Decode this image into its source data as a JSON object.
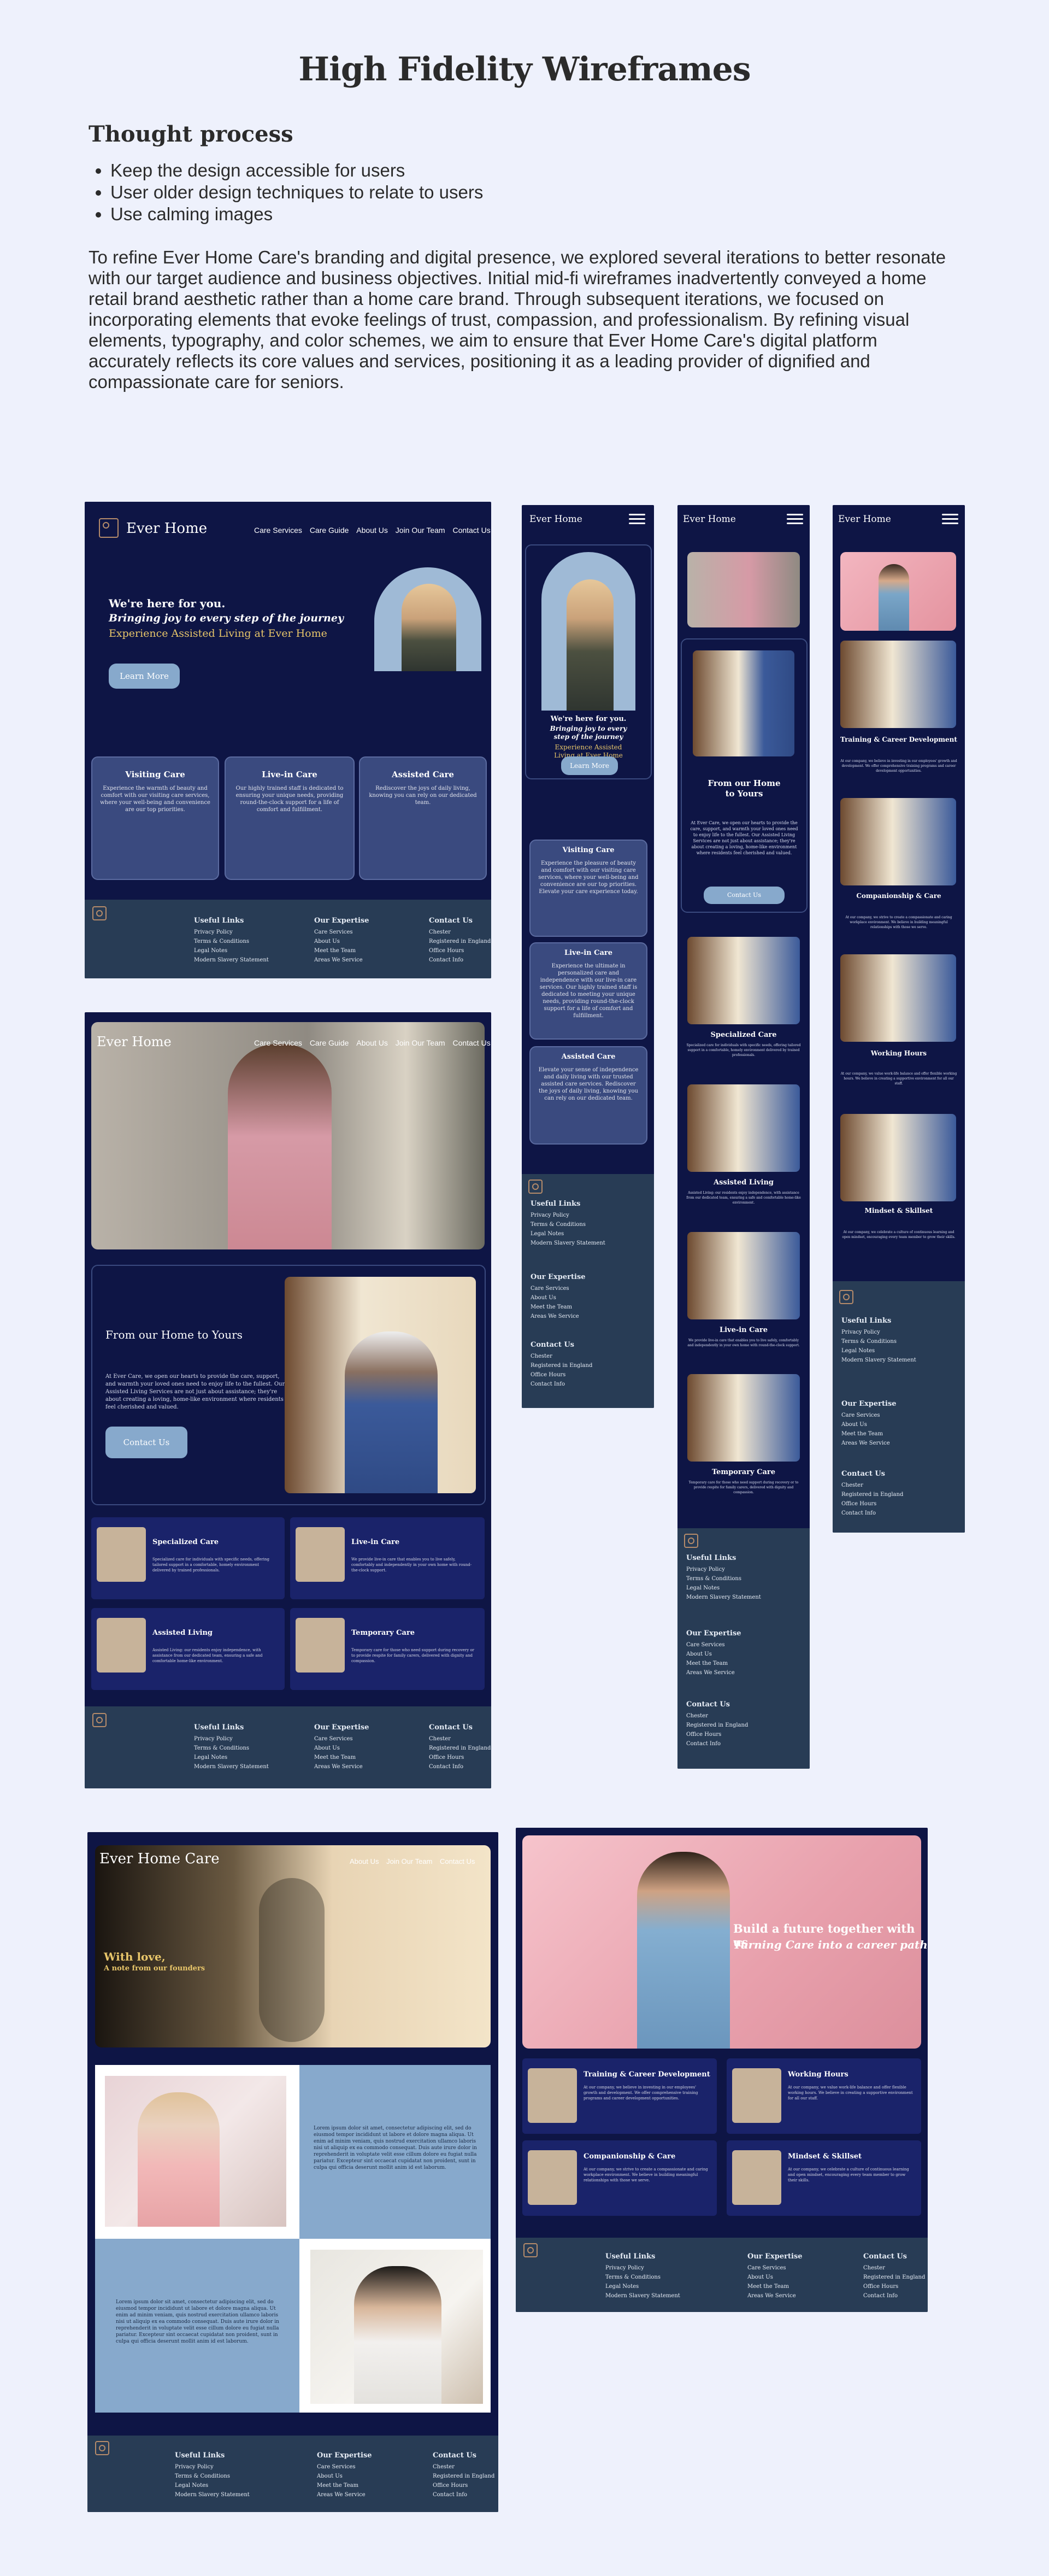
{
  "page": {
    "title": "High Fidelity Wireframes",
    "thought_heading": "Thought process",
    "bullets": [
      "Keep the design accessible for users",
      "User older design techniques to relate to users",
      "Use calming images"
    ],
    "paragraph": "To refine Ever Home Care's branding and digital presence, we explored several iterations to better resonate with our target audience and business objectives. Initial mid-fi wireframes inadvertently conveyed a home retail brand aesthetic rather than a home care brand. Through subsequent iterations, we focused on incorporating elements that evoke feelings of trust, compassion, and professionalism. By refining visual elements, typography, and color schemes, we aim to ensure that Ever Home Care's digital platform accurately reflects its core values and services, positioning it as a leading provider of dignified and compassionate care for seniors."
  },
  "colors": {
    "navy": "#0e1545",
    "footer": "#283c55",
    "accent_blue": "#87a9cc",
    "gold": "#e8c66a",
    "background": "#eef1fc"
  },
  "brand": {
    "name": "Ever Home",
    "name_full": "Ever Home Care",
    "logo_letters": "EH"
  },
  "nav": {
    "links": [
      "Care Services",
      "Care Guide",
      "About Us",
      "Join Our Team",
      "Contact Us"
    ],
    "links_short": [
      "About Us",
      "Join Our Team",
      "Contact Us"
    ],
    "menu_icon": "hamburger-icon"
  },
  "hero": {
    "line1": "We're here for you.",
    "line2": "Bringing joy to every step of the journey",
    "line3": "Experience Assisted Living at Ever Home",
    "mobile_line2": "Bringing joy to every step of the journey",
    "button": "Learn More"
  },
  "cards": [
    {
      "title": "Visiting Care",
      "text": "Experience the warmth of beauty and comfort with our visiting care services, where your well-being and convenience are our top priorities."
    },
    {
      "title": "Live-in Care",
      "text": "Our highly trained staff is dedicated to ensuring your unique needs, providing round-the-clock support for a life of comfort and fulfillment."
    },
    {
      "title": "Assisted Care",
      "text": "Rediscover the joys of daily living, knowing you can rely on our dedicated team."
    }
  ],
  "mobile_cards": [
    {
      "title": "Visiting Care",
      "text": "Experience the pleasure of beauty and comfort with our visiting care services, where your well-being and convenience are our top priorities. Elevate your care experience today."
    },
    {
      "title": "Live-in Care",
      "text": "Experience the ultimate in personalized care and independence with our live-in care services. Our highly trained staff is dedicated to meeting your unique needs, providing round-the-clock support for a life of comfort and fulfillment."
    },
    {
      "title": "Assisted Care",
      "text": "Elevate your sense of independence and daily living with our trusted assisted care services. Rediscover the joys of daily living, knowing you can rely on our dedicated team."
    }
  ],
  "about": {
    "title": "From our Home to Yours",
    "text": "At Ever Care, we open our hearts to provide the care, support, and warmth your loved ones need to enjoy life to the fullest. Our Assisted Living Services are not just about assistance; they're about creating a loving, home-like environment where residents feel cherished and valued.",
    "button": "Contact Us"
  },
  "services": [
    {
      "title": "Specialized Care",
      "text": "Specialized care for individuals with specific needs, offering tailored support in a comfortable, homely environment delivered by trained professionals."
    },
    {
      "title": "Live-in Care",
      "text": "We provide live-in care that enables you to live safely, comfortably and independently in your own home with round-the-clock support."
    },
    {
      "title": "Assisted Living",
      "text": "Assisted Living: our residents enjoy independence, with assistance from our dedicated team, ensuring a safe and comfortable home-like environment."
    },
    {
      "title": "Temporary Care",
      "text": "Temporary care for those who need support during recovery or to provide respite for family carers, delivered with dignity and compassion."
    }
  ],
  "founders": {
    "line1": "With love,",
    "line2": "A note from our founders"
  },
  "lorem": "Lorem ipsum dolor sit amet, consectetur adipiscing elit, sed do eiusmod tempor incididunt ut labore et dolore magna aliqua. Ut enim ad minim veniam, quis nostrud exercitation ullamco laboris nisi ut aliquip ex ea commodo consequat. Duis aute irure dolor in reprehenderit in voluptate velit esse cillum dolore eu fugiat nulla pariatur. Excepteur sint occaecat cupidatat non proident, sunt in culpa qui officia deserunt mollit anim id est laborum.",
  "careers": {
    "line1": "Build a future together with us",
    "line2": "Turning Care into a career path",
    "items": [
      {
        "title": "Training & Career Development",
        "text": "At our company, we believe in investing in our employees' growth and development. We offer comprehensive training programs and career development opportunities."
      },
      {
        "title": "Working Hours",
        "text": "At our company, we value work-life balance and offer flexible working hours. We believe in creating a supportive environment for all our staff."
      },
      {
        "title": "Companionship & Care",
        "text": "At our company, we strive to create a compassionate and caring workplace environment. We believe in building meaningful relationships with those we serve."
      },
      {
        "title": "Mindset & Skillset",
        "text": "At our company, we celebrate a culture of continuous learning and open mindset, encouraging every team member to grow their skills."
      }
    ]
  },
  "footer": {
    "useful_links_title": "Useful Links",
    "useful_links": [
      "Privacy Policy",
      "Terms & Conditions",
      "Legal Notes",
      "Modern Slavery Statement"
    ],
    "expertise_title": "Our Expertise",
    "expertise": [
      "Care Services",
      "About Us",
      "Meet the Team",
      "Areas We Service"
    ],
    "contact_title": "Contact Us",
    "contact": [
      "Chester",
      "Registered in England",
      "Office Hours",
      "Contact Info"
    ]
  }
}
